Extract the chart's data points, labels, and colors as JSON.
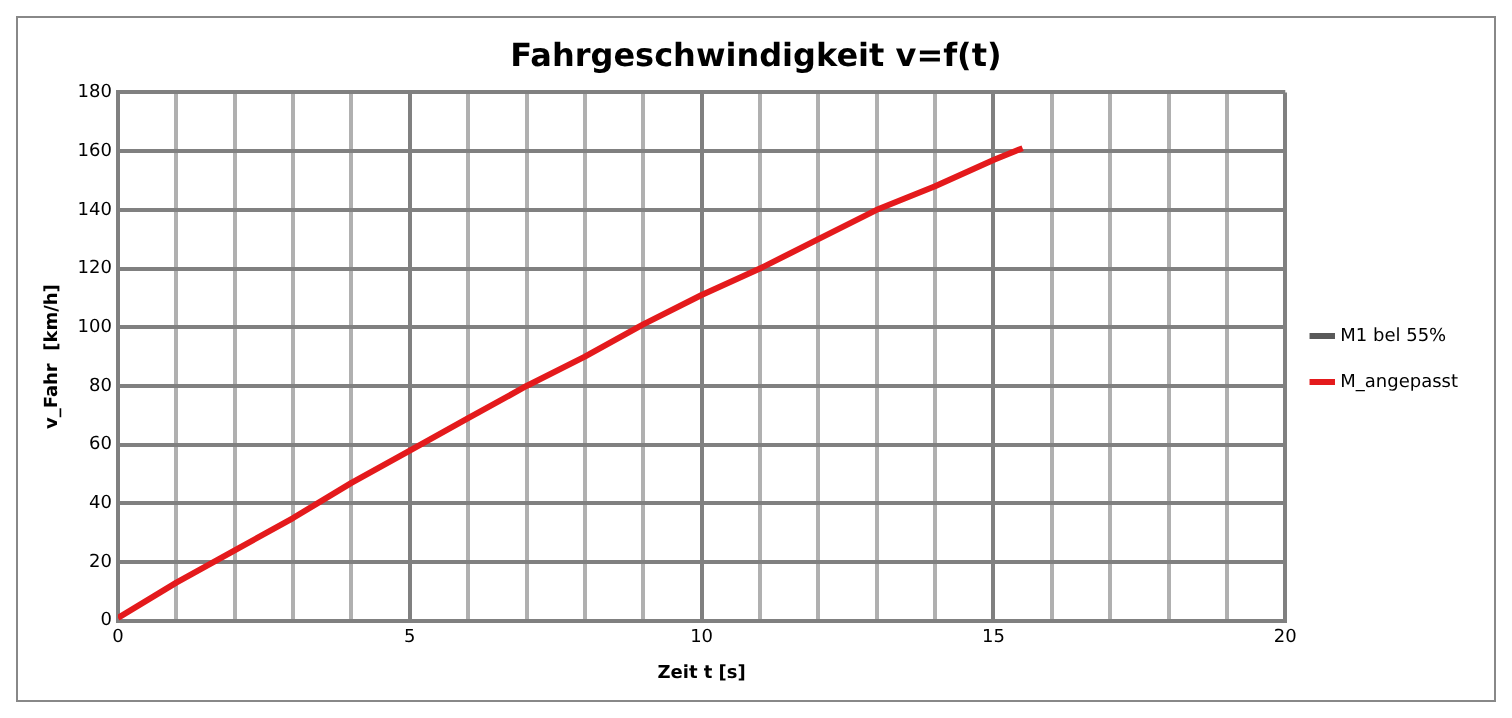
{
  "chart_data": {
    "type": "line",
    "title": "Fahrgeschwindigkeit v=f(t)",
    "xlabel": "Zeit t [s]",
    "ylabel": "v_Fahr  [km/h]",
    "x": [
      0,
      1,
      2,
      3,
      4,
      5,
      6,
      7,
      8,
      9,
      10,
      11,
      12,
      13,
      14,
      15,
      15.5
    ],
    "series": [
      {
        "name": "M1 bel 55%",
        "color": "#595959",
        "values": [
          null,
          null,
          null,
          null,
          null,
          null,
          null,
          null,
          null,
          null,
          null,
          null,
          null,
          null,
          null,
          null,
          null
        ]
      },
      {
        "name": "M_angepasst",
        "color": "#e41a1c",
        "values": [
          1,
          13,
          24,
          35,
          47,
          58,
          69,
          80,
          90,
          101,
          111,
          120,
          130,
          140,
          148,
          157,
          161
        ]
      }
    ],
    "xlim": [
      0,
      20
    ],
    "xticks": [
      0,
      {
        "value": 1,
        "label": null
      },
      {
        "value": 2,
        "label": null
      },
      {
        "value": 3,
        "label": null
      },
      {
        "value": 4,
        "label": null
      },
      5,
      {
        "value": 6,
        "label": null
      },
      {
        "value": 7,
        "label": null
      },
      {
        "value": 8,
        "label": null
      },
      {
        "value": 9,
        "label": null
      },
      10,
      {
        "value": 11,
        "label": null
      },
      {
        "value": 12,
        "label": null
      },
      {
        "value": 13,
        "label": null
      },
      {
        "value": 14,
        "label": null
      },
      15,
      {
        "value": 16,
        "label": null
      },
      {
        "value": 17,
        "label": null
      },
      {
        "value": 18,
        "label": null
      },
      {
        "value": 19,
        "label": null
      },
      20
    ],
    "ylim": [
      0,
      180
    ],
    "yticks": [
      0,
      20,
      40,
      60,
      80,
      100,
      120,
      140,
      160,
      180
    ],
    "grid": true,
    "legend": "right",
    "marker": "none",
    "line_style": "solid"
  }
}
